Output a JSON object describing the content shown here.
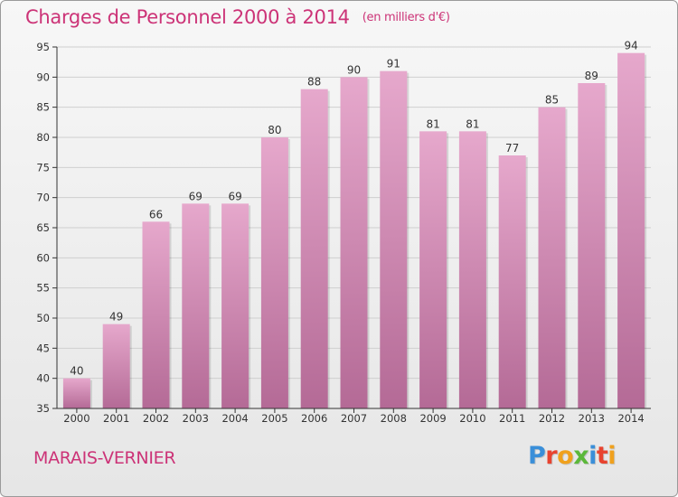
{
  "title": "Charges de Personnel 2000 à 2014",
  "subtitle": "(en milliers d'€)",
  "commune": "MARAIS-VERNIER",
  "logo": {
    "letters": [
      "P",
      "r",
      "o",
      "x",
      "i",
      "t",
      "i"
    ],
    "colors": [
      "#3a8fd9",
      "#e8432f",
      "#f0a11d",
      "#5cb83a",
      "#3a8fd9",
      "#e8432f",
      "#f0a11d"
    ]
  },
  "colors": {
    "bar_top": "#e6a8cc",
    "bar_bottom": "#b46a96",
    "grid": "#cfcfcf",
    "axis": "#333333"
  },
  "chart_data": {
    "type": "bar",
    "categories": [
      "2000",
      "2001",
      "2002",
      "2003",
      "2004",
      "2005",
      "2006",
      "2007",
      "2008",
      "2009",
      "2010",
      "2011",
      "2012",
      "2013",
      "2014"
    ],
    "values": [
      40,
      49,
      66,
      69,
      69,
      80,
      88,
      90,
      91,
      81,
      81,
      77,
      85,
      89,
      94
    ],
    "ylim": [
      35,
      95
    ],
    "yticks": [
      35,
      40,
      45,
      50,
      55,
      60,
      65,
      70,
      75,
      80,
      85,
      90,
      95
    ],
    "grid": true
  }
}
